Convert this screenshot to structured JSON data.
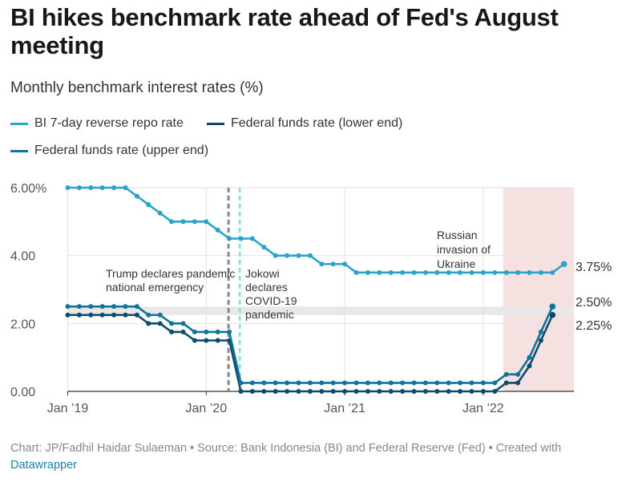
{
  "header": {
    "title": "BI hikes benchmark rate ahead of Fed's August meeting",
    "subtitle": "Monthly benchmark interest rates (%)"
  },
  "footer": {
    "credit": "Chart: JP/Fadhil Haidar Sulaeman • Source: Bank Indonesia (BI) and Federal Reserve (Fed) • Created with",
    "tool": "Datawrapper"
  },
  "colors": {
    "bi": "#2aa3cc",
    "fed_lower": "#0c4a6e",
    "fed_upper": "#11739a",
    "shade": "#f6e1e1",
    "grid": "#e2e2e2",
    "trump_line": "#888888",
    "jokowi_line": "#8ee6cf"
  },
  "chart_data": {
    "type": "line",
    "title": "BI hikes benchmark rate ahead of Fed's August meeting",
    "subtitle": "Monthly benchmark interest rates (%)",
    "xlabel": "",
    "ylabel": "",
    "ylim": [
      0,
      6
    ],
    "yticks": [
      "0.00",
      "2.00",
      "4.00",
      "6.00%"
    ],
    "ytick_values": [
      0,
      2,
      4,
      6
    ],
    "xticks": [
      "Jan ’19",
      "Jan ’20",
      "Jan ’21",
      "Jan ’22"
    ],
    "x": [
      "2019-01",
      "2019-02",
      "2019-03",
      "2019-04",
      "2019-05",
      "2019-06",
      "2019-07",
      "2019-08",
      "2019-09",
      "2019-10",
      "2019-11",
      "2019-12",
      "2020-01",
      "2020-02",
      "2020-03",
      "2020-04",
      "2020-05",
      "2020-06",
      "2020-07",
      "2020-08",
      "2020-09",
      "2020-10",
      "2020-11",
      "2020-12",
      "2021-01",
      "2021-02",
      "2021-03",
      "2021-04",
      "2021-05",
      "2021-06",
      "2021-07",
      "2021-08",
      "2021-09",
      "2021-10",
      "2021-11",
      "2021-12",
      "2022-01",
      "2022-02",
      "2022-03",
      "2022-04",
      "2022-05",
      "2022-06",
      "2022-07",
      "2022-08"
    ],
    "series": [
      {
        "name": "BI 7-day reverse repo rate",
        "values": [
          6.0,
          6.0,
          6.0,
          6.0,
          6.0,
          6.0,
          5.75,
          5.5,
          5.25,
          5.0,
          5.0,
          5.0,
          5.0,
          4.75,
          4.5,
          4.5,
          4.5,
          4.25,
          4.0,
          4.0,
          4.0,
          4.0,
          3.75,
          3.75,
          3.75,
          3.5,
          3.5,
          3.5,
          3.5,
          3.5,
          3.5,
          3.5,
          3.5,
          3.5,
          3.5,
          3.5,
          3.5,
          3.5,
          3.5,
          3.5,
          3.5,
          3.5,
          3.5,
          3.75
        ],
        "end_label": "3.75%"
      },
      {
        "name": "Federal funds rate (lower end)",
        "values": [
          2.25,
          2.25,
          2.25,
          2.25,
          2.25,
          2.25,
          2.25,
          2.0,
          2.0,
          1.75,
          1.75,
          1.5,
          1.5,
          1.5,
          1.5,
          0.0,
          0.0,
          0.0,
          0.0,
          0.0,
          0.0,
          0.0,
          0.0,
          0.0,
          0.0,
          0.0,
          0.0,
          0.0,
          0.0,
          0.0,
          0.0,
          0.0,
          0.0,
          0.0,
          0.0,
          0.0,
          0.0,
          0.0,
          0.25,
          0.25,
          0.75,
          1.5,
          2.25,
          null
        ],
        "end_label": "2.25%"
      },
      {
        "name": "Federal funds rate (upper end)",
        "values": [
          2.5,
          2.5,
          2.5,
          2.5,
          2.5,
          2.5,
          2.5,
          2.25,
          2.25,
          2.0,
          2.0,
          1.75,
          1.75,
          1.75,
          1.75,
          0.25,
          0.25,
          0.25,
          0.25,
          0.25,
          0.25,
          0.25,
          0.25,
          0.25,
          0.25,
          0.25,
          0.25,
          0.25,
          0.25,
          0.25,
          0.25,
          0.25,
          0.25,
          0.25,
          0.25,
          0.25,
          0.25,
          0.25,
          0.5,
          0.5,
          1.0,
          1.75,
          2.5,
          null
        ],
        "end_label": "2.50%"
      }
    ],
    "annotations": [
      {
        "id": "trump",
        "x": "2020-03",
        "lines": [
          "Trump declares pandemic",
          "national emergency"
        ]
      },
      {
        "id": "jokowi",
        "x": "2020-03",
        "lines": [
          "Jokowi",
          "declares",
          "COVID-19",
          "pandemic"
        ]
      },
      {
        "id": "russia",
        "x": "2022-02",
        "lines": [
          "Russian",
          "invasion of",
          "Ukraine"
        ]
      }
    ],
    "highlight_band_y": [
      2.25,
      2.5
    ],
    "shaded_region_x": [
      "2022-03",
      "2022-08"
    ],
    "grid": true,
    "legend_position": "top-left"
  }
}
